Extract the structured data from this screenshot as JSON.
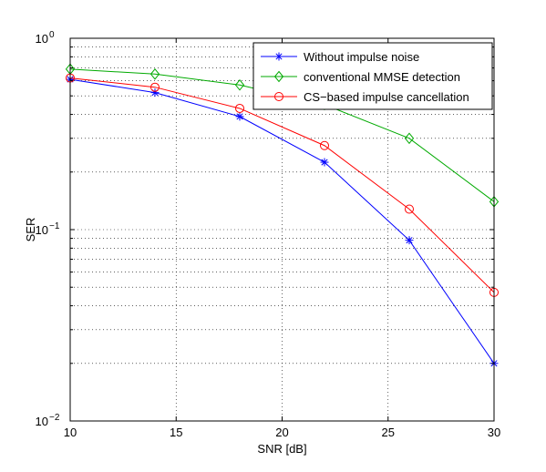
{
  "chart_data": {
    "type": "line",
    "xlabel": "SNR [dB]",
    "ylabel": "SER",
    "xlim": [
      10,
      30
    ],
    "ylim": [
      0.01,
      1
    ],
    "y_scale": "log",
    "grid": true,
    "legend_position": "top-right",
    "x_ticks": [
      "10",
      "15",
      "20",
      "25",
      "30"
    ],
    "y_ticks": [
      {
        "value": 0.01,
        "base": "10",
        "exp": "−2"
      },
      {
        "value": 0.1,
        "base": "10",
        "exp": "−1"
      },
      {
        "value": 1,
        "base": "10",
        "exp": "0"
      }
    ],
    "x": [
      10,
      14,
      18,
      22,
      26,
      30
    ],
    "series": [
      {
        "name": "Without impulse noise",
        "color": "#0000ff",
        "marker": "star",
        "values": [
          0.61,
          0.52,
          0.39,
          0.225,
          0.088,
          0.02
        ]
      },
      {
        "name": "conventional MMSE detection",
        "color": "#00aa00",
        "marker": "diamond",
        "values": [
          0.69,
          0.65,
          0.57,
          0.45,
          0.3,
          0.14
        ]
      },
      {
        "name": "CS−based impulse cancellation",
        "color": "#ff0000",
        "marker": "circle",
        "values": [
          0.62,
          0.555,
          0.43,
          0.275,
          0.128,
          0.047
        ]
      }
    ]
  }
}
